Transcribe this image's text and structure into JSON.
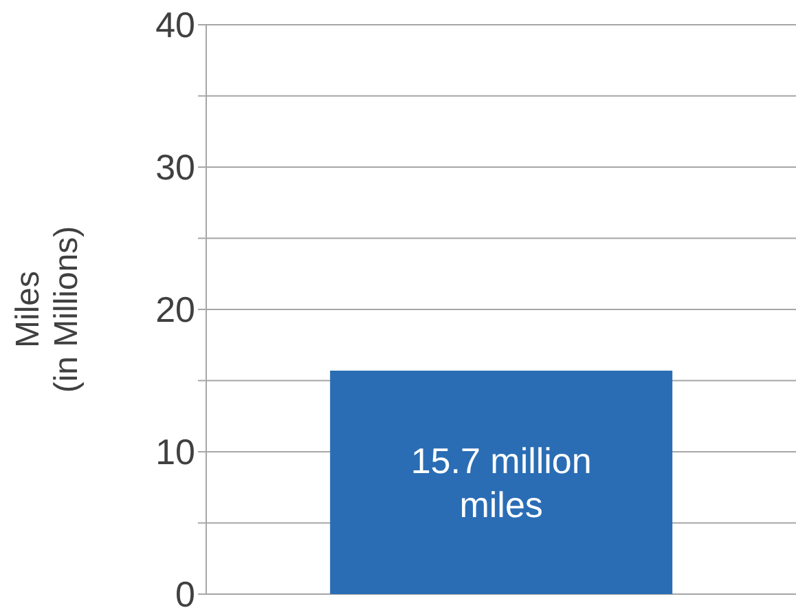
{
  "chart_data": {
    "type": "bar",
    "ylabel": "Miles\n(in Millions)",
    "categories": [
      null
    ],
    "values": [
      15.7
    ],
    "color": "#2a6db5",
    "value_labels": [
      "15.7 million miles"
    ],
    "ylim": [
      0,
      40
    ],
    "yticks": [
      0,
      {
        "value": 5,
        "label": null
      },
      10,
      {
        "value": 15,
        "label": null
      },
      20,
      {
        "value": 25,
        "label": null
      },
      30,
      {
        "value": 35,
        "label": null
      },
      40
    ],
    "grid": "y"
  }
}
